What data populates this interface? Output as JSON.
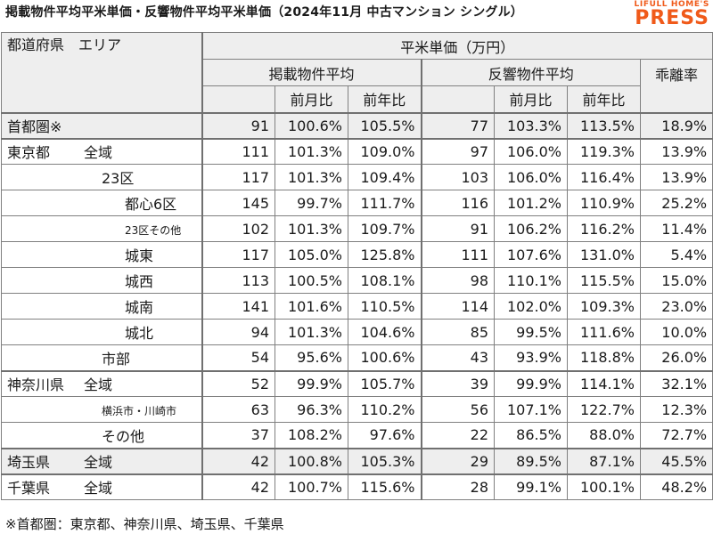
{
  "title": "掲載物件平均平米単価・反響物件平均平米単価（2024年11月 中古マンション シングル）",
  "logo": {
    "top": "LIFULL HOME'S",
    "main": "PRESS"
  },
  "header": {
    "area": "都道府県　エリア",
    "price": "平米単価（万円）",
    "listing": "掲載物件平均",
    "response": "反響物件平均",
    "divergence": "乖離率",
    "mom": "前月比",
    "yoy": "前年比",
    "mom2": "前月比",
    "yoy2": "前年比"
  },
  "rows": [
    {
      "a": "首都圏※",
      "b": "",
      "v": [
        "91",
        "100.6%",
        "105.5%",
        "77",
        "103.3%",
        "113.5%",
        "18.9%"
      ]
    },
    {
      "a": "東京都",
      "b": "全域",
      "v": [
        "111",
        "101.3%",
        "109.0%",
        "97",
        "106.0%",
        "119.3%",
        "13.9%"
      ]
    },
    {
      "a": "",
      "b": "23区",
      "v": [
        "117",
        "101.3%",
        "109.4%",
        "103",
        "106.0%",
        "116.4%",
        "13.9%"
      ]
    },
    {
      "a": "",
      "b": "都心6区",
      "v": [
        "145",
        "99.7%",
        "111.7%",
        "116",
        "101.2%",
        "110.9%",
        "25.2%"
      ]
    },
    {
      "a": "",
      "b": "23区その他",
      "v": [
        "102",
        "101.3%",
        "109.7%",
        "91",
        "106.2%",
        "116.2%",
        "11.4%"
      ]
    },
    {
      "a": "",
      "b": "城東",
      "v": [
        "117",
        "105.0%",
        "125.8%",
        "111",
        "107.6%",
        "131.0%",
        "5.4%"
      ]
    },
    {
      "a": "",
      "b": "城西",
      "v": [
        "113",
        "100.5%",
        "108.1%",
        "98",
        "110.1%",
        "115.5%",
        "15.0%"
      ]
    },
    {
      "a": "",
      "b": "城南",
      "v": [
        "141",
        "101.6%",
        "110.5%",
        "114",
        "102.0%",
        "109.3%",
        "23.0%"
      ]
    },
    {
      "a": "",
      "b": "城北",
      "v": [
        "94",
        "101.3%",
        "104.6%",
        "85",
        "99.5%",
        "111.6%",
        "10.0%"
      ]
    },
    {
      "a": "",
      "b": "市部",
      "v": [
        "54",
        "95.6%",
        "100.6%",
        "43",
        "93.9%",
        "118.8%",
        "26.0%"
      ]
    },
    {
      "a": "神奈川県",
      "b": "全域",
      "v": [
        "52",
        "99.9%",
        "105.7%",
        "39",
        "99.9%",
        "114.1%",
        "32.1%"
      ]
    },
    {
      "a": "",
      "b": "横浜市・川崎市",
      "v": [
        "63",
        "96.3%",
        "110.2%",
        "56",
        "107.1%",
        "122.7%",
        "12.3%"
      ]
    },
    {
      "a": "",
      "b": "その他",
      "v": [
        "37",
        "108.2%",
        "97.6%",
        "22",
        "86.5%",
        "88.0%",
        "72.7%"
      ]
    },
    {
      "a": "埼玉県",
      "b": "全域",
      "v": [
        "42",
        "100.8%",
        "105.3%",
        "29",
        "89.5%",
        "87.1%",
        "45.5%"
      ]
    },
    {
      "a": "千葉県",
      "b": "全域",
      "v": [
        "42",
        "100.7%",
        "115.6%",
        "28",
        "99.1%",
        "100.1%",
        "48.2%"
      ]
    }
  ],
  "footnote": "※首都圏：東京都、神奈川県、埼玉県、千葉県"
}
